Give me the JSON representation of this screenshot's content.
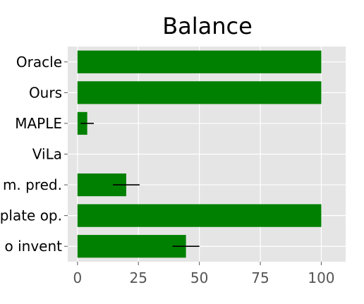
{
  "chart_data": {
    "type": "bar",
    "orientation": "horizontal",
    "title": "Balance",
    "xlabel": "",
    "ylabel": "",
    "categories": [
      "Oracle",
      "Ours",
      "MAPLE",
      "ViLa",
      "m. pred.",
      "plate op.",
      "o invent"
    ],
    "values": [
      100,
      100,
      4,
      0,
      20,
      100,
      44.5
    ],
    "error": [
      0,
      0,
      2.7,
      0,
      5.5,
      0,
      5.5
    ],
    "xlim": [
      -4,
      110
    ],
    "xticks": [
      0,
      25,
      50,
      75,
      100
    ],
    "grid": true,
    "bar_color": "#008000",
    "error_color": "#000000",
    "background_color": "#e5e5e5",
    "grid_color": "#ffffff"
  }
}
